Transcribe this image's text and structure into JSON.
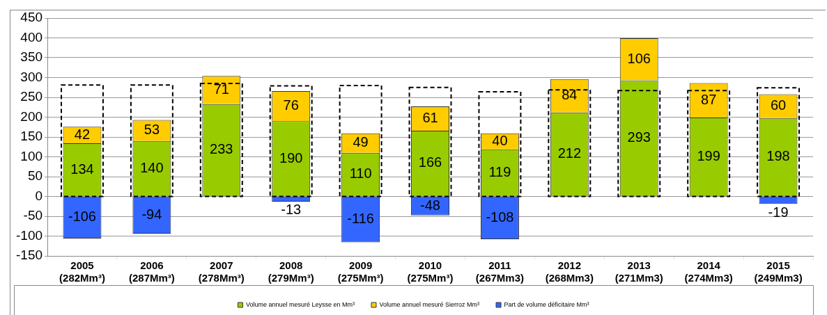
{
  "chart_data": [
    {
      "type": "bar",
      "stacked": true,
      "data_labels": true,
      "grid": "y",
      "legend": "bottom",
      "categories": [
        "2005 (282Mm³)",
        "2006 (287Mm³)",
        "2007 (278Mm³)",
        "2008 (279Mm³)",
        "2009 (275Mm³)",
        "2010 (275Mm³)",
        "2011 (267Mm3)",
        "2012 (268Mm3)",
        "2013 (271Mm3)",
        "2014 (274Mm3)",
        "2015 (249Mm3)"
      ],
      "ylim": [
        -150,
        450
      ],
      "yticks": [
        -150,
        -100,
        -50,
        0,
        50,
        100,
        150,
        200,
        250,
        300,
        350,
        400,
        450
      ],
      "series": [
        {
          "name": "Volume annuel mesuré Leysse en Mm³",
          "color": "#99cc00",
          "values": [
            134,
            140,
            233,
            190,
            110,
            166,
            119,
            212,
            293,
            199,
            198
          ]
        },
        {
          "name": "Volume annuel mesuré Sierroz Mm³",
          "color": "#ffcc00",
          "values": [
            42,
            53,
            71,
            76,
            49,
            61,
            40,
            84,
            106,
            87,
            60
          ]
        },
        {
          "name": "Part de volume déficitaire Mm³",
          "color": "#3366ff",
          "values": [
            -106,
            -94,
            null,
            -13,
            -116,
            -48,
            -108,
            null,
            null,
            null,
            -19
          ]
        }
      ]
    },
    {
      "type": "bar",
      "tick_labels": false,
      "ylim": [
        -150,
        450
      ],
      "series": [
        {
          "color": "#000000",
          "line_style": "dashed",
          "values": [
            281,
            281,
            285,
            279,
            280,
            275,
            264,
            269,
            267,
            267,
            274
          ]
        }
      ]
    }
  ]
}
